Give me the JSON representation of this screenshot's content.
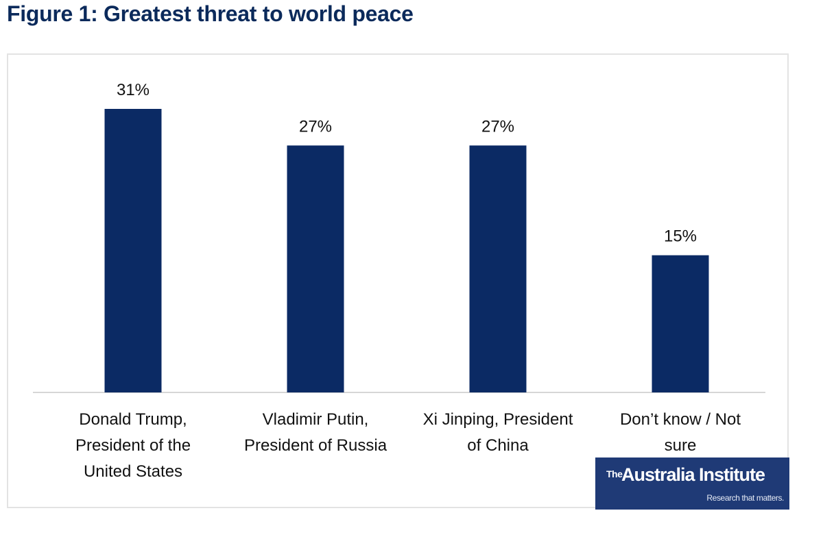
{
  "chart_data": {
    "type": "bar",
    "title": "Figure 1: Greatest threat to world peace",
    "xlabel": "",
    "ylabel": "",
    "ylim": [
      0,
      31
    ],
    "grid": false,
    "categories": [
      [
        "Donald Trump,",
        "President of the",
        "United States"
      ],
      [
        "Vladimir Putin,",
        "President of Russia"
      ],
      [
        "Xi Jinping, President",
        "of China"
      ],
      [
        "Don’t know / Not",
        "sure"
      ]
    ],
    "values": [
      31,
      27,
      27,
      15
    ],
    "value_labels": [
      "31%",
      "27%",
      "27%",
      "15%"
    ],
    "bar_color": "#0b2a64"
  },
  "branding": {
    "logo_prefix": "The",
    "logo_name": "Australia Institute",
    "tagline": "Research that matters.",
    "logo_bg": "#1f3a76"
  }
}
